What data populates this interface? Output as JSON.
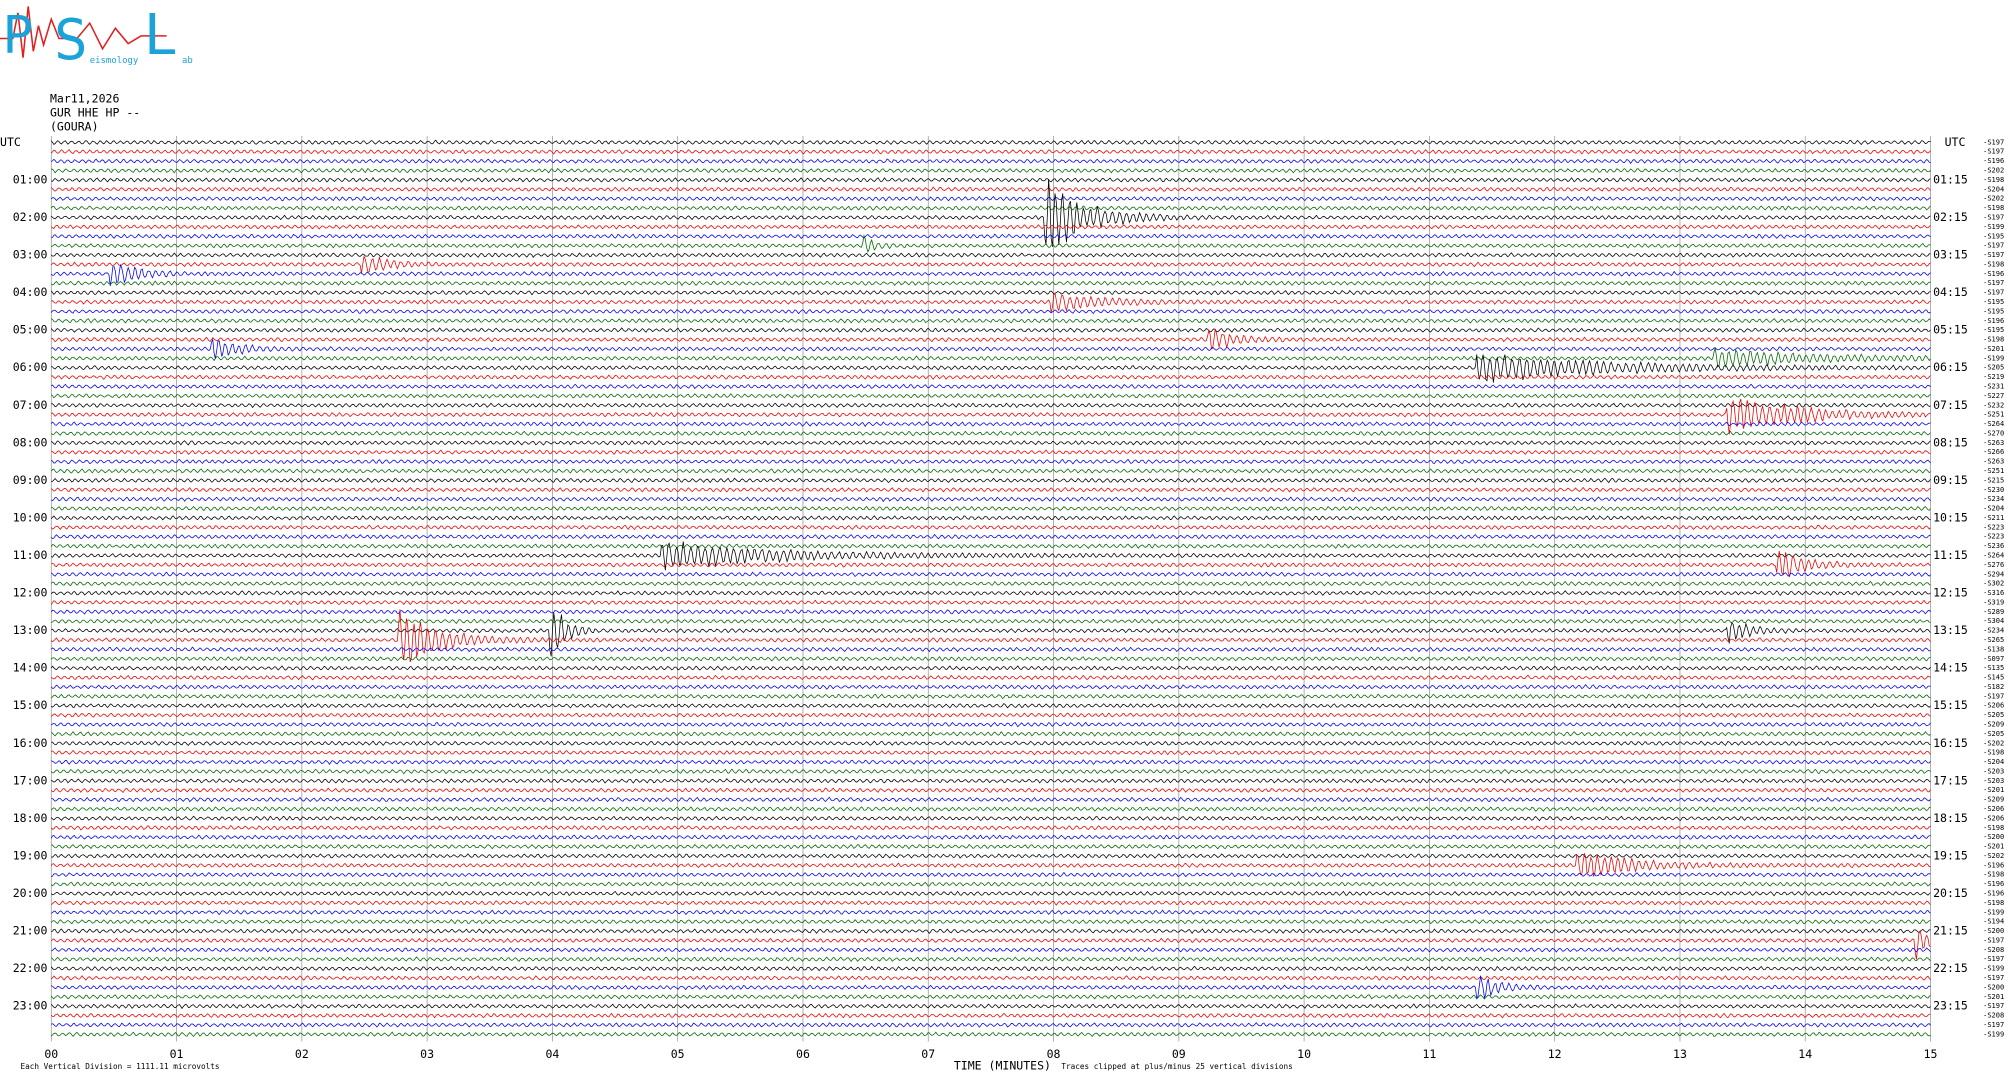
{
  "logo": {
    "p": "P",
    "s": "S",
    "eismology": "eismology",
    "l": "L",
    "ab": "ab"
  },
  "header": {
    "date": "Mar11,2026",
    "station": "GUR HHE HP --",
    "site": "(GOURA)"
  },
  "left_axis": {
    "title": "UTC",
    "labels": [
      "01:00",
      "02:00",
      "03:00",
      "04:00",
      "05:00",
      "06:00",
      "07:00",
      "08:00",
      "09:00",
      "10:00",
      "11:00",
      "12:00",
      "13:00",
      "14:00",
      "15:00",
      "16:00",
      "17:00",
      "18:00",
      "19:00",
      "20:00",
      "21:00",
      "22:00",
      "23:00"
    ]
  },
  "right_axis": {
    "title": "UTC",
    "labels": [
      "01:15",
      "02:15",
      "03:15",
      "04:15",
      "05:15",
      "06:15",
      "07:15",
      "08:15",
      "09:15",
      "10:15",
      "11:15",
      "12:15",
      "13:15",
      "14:15",
      "15:15",
      "16:15",
      "17:15",
      "18:15",
      "19:15",
      "20:15",
      "21:15",
      "22:15",
      "23:15"
    ],
    "trace_labels": [
      "-S197",
      "-S197",
      "-S196",
      "-S202",
      "-S198",
      "-S204",
      "-S202",
      "-S198",
      "-S197",
      "-S199",
      "-S195",
      "-S197",
      "-S197",
      "-S198",
      "-S196",
      "-S197",
      "-S197",
      "-S195",
      "-S195",
      "-S196",
      "-S195",
      "-S198",
      "-S201",
      "-S199",
      "-S205",
      "-S219",
      "-S231",
      "-S227",
      "-S232",
      "-S251",
      "-S264",
      "-S270",
      "-S263",
      "-S266",
      "-S263",
      "-S251",
      "-S215",
      "-S230",
      "-S234",
      "-S204",
      "-S211",
      "-S223",
      "-S223",
      "-S236",
      "-S264",
      "-S276",
      "-S294",
      "-S302",
      "-S316",
      "-S319",
      "-S289",
      "-S304",
      "-S234",
      "-S265",
      "-S138",
      "-S097",
      "-S135",
      "-S145",
      "-S182",
      "-S197",
      "-S206",
      "-S205",
      "-S209",
      "-S205",
      "-S202",
      "-S198",
      "-S204",
      "-S203",
      "-S203",
      "-S201",
      "-S209",
      "-S206",
      "-S206",
      "-S198",
      "-S200",
      "-S201",
      "-S202",
      "-S196",
      "-S198",
      "-S196",
      "-S196",
      "-S198",
      "-S199",
      "-S194",
      "-S200",
      "-S197",
      "-S208",
      "-S197",
      "-S199",
      "-S197",
      "-S200",
      "-S201",
      "-S197",
      "-S208",
      "-S197",
      "-S199"
    ]
  },
  "x_axis": {
    "ticks": [
      "00",
      "01",
      "02",
      "03",
      "04",
      "05",
      "06",
      "07",
      "08",
      "09",
      "10",
      "11",
      "12",
      "13",
      "14",
      "15"
    ],
    "title": "TIME (MINUTES)"
  },
  "footer": {
    "scale": "Each Vertical Division = 1111.11 microvolts",
    "clip": "Traces clipped at plus/minus 25 vertical divisions"
  }
}
